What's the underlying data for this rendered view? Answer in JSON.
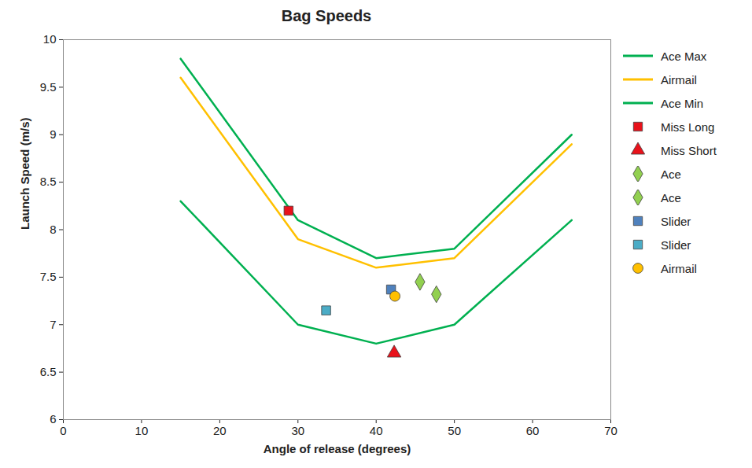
{
  "chart_data": {
    "type": "line",
    "title": "Bag Speeds",
    "x_label": "Angle of release (degrees)",
    "y_label": "Launch Speed (m/s)",
    "xlim": [
      0,
      70
    ],
    "xticks": [
      0,
      10,
      20,
      30,
      40,
      50,
      60,
      70
    ],
    "ylim": [
      6,
      10
    ],
    "yticks": [
      6,
      6.5,
      7,
      7.5,
      8,
      8.5,
      9,
      9.5,
      10
    ],
    "grid": false,
    "legend": "right",
    "series": [
      {
        "name": "Ace Max",
        "type": "line",
        "color": "#00b050",
        "x": [
          15,
          30,
          40,
          50,
          65
        ],
        "values": [
          9.8,
          8.1,
          7.7,
          7.8,
          9.0
        ]
      },
      {
        "name": "Airmail",
        "type": "line",
        "color": "#ffc000",
        "x": [
          15,
          30,
          40,
          50,
          65
        ],
        "values": [
          9.6,
          7.9,
          7.6,
          7.7,
          8.9
        ]
      },
      {
        "name": "Ace Min",
        "type": "line",
        "color": "#00b050",
        "x": [
          15,
          30,
          40,
          50,
          65
        ],
        "values": [
          8.3,
          7.0,
          6.8,
          7.0,
          8.1
        ]
      },
      {
        "name": "Miss Long",
        "type": "scatter",
        "marker": "square",
        "color": "#e8121b",
        "x": [
          28.8
        ],
        "values": [
          8.2
        ]
      },
      {
        "name": "Miss Short",
        "type": "scatter",
        "marker": "triangle",
        "color": "#e8121b",
        "x": [
          42.3
        ],
        "values": [
          6.7
        ]
      },
      {
        "name": "Ace",
        "type": "scatter",
        "marker": "diamond",
        "color": "#92d050",
        "x": [
          45.6
        ],
        "values": [
          7.45
        ]
      },
      {
        "name": "Ace",
        "type": "scatter",
        "marker": "diamond",
        "color": "#92d050",
        "x": [
          47.7
        ],
        "values": [
          7.32
        ]
      },
      {
        "name": "Slider",
        "type": "scatter",
        "marker": "square",
        "color": "#4f81bd",
        "x": [
          41.9
        ],
        "values": [
          7.37
        ]
      },
      {
        "name": "Slider",
        "type": "scatter",
        "marker": "square",
        "color": "#4bacc6",
        "x": [
          33.6
        ],
        "values": [
          7.15
        ]
      },
      {
        "name": "Airmail",
        "type": "scatter",
        "marker": "circle",
        "color": "#ffc000",
        "x": [
          42.4
        ],
        "values": [
          7.3
        ]
      }
    ]
  }
}
